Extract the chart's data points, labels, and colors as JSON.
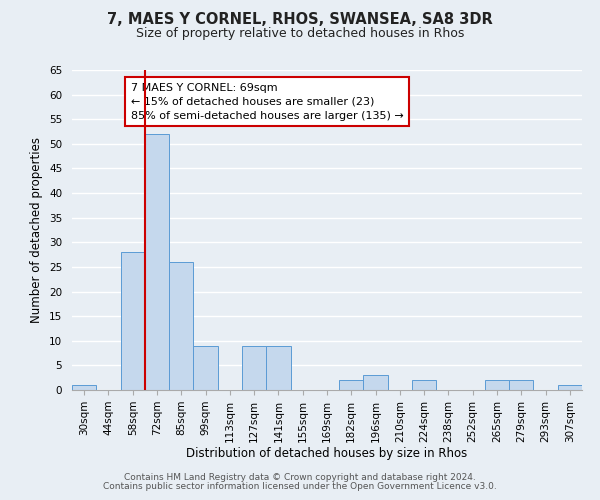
{
  "title": "7, MAES Y CORNEL, RHOS, SWANSEA, SA8 3DR",
  "subtitle": "Size of property relative to detached houses in Rhos",
  "xlabel": "Distribution of detached houses by size in Rhos",
  "ylabel": "Number of detached properties",
  "bin_labels": [
    "30sqm",
    "44sqm",
    "58sqm",
    "72sqm",
    "85sqm",
    "99sqm",
    "113sqm",
    "127sqm",
    "141sqm",
    "155sqm",
    "169sqm",
    "182sqm",
    "196sqm",
    "210sqm",
    "224sqm",
    "238sqm",
    "252sqm",
    "265sqm",
    "279sqm",
    "293sqm",
    "307sqm"
  ],
  "bar_heights": [
    1,
    0,
    28,
    52,
    26,
    9,
    0,
    9,
    9,
    0,
    0,
    2,
    3,
    0,
    2,
    0,
    0,
    2,
    2,
    0,
    1
  ],
  "bar_color": "#c5d8ed",
  "bar_edge_color": "#5b9bd5",
  "vline_color": "#cc0000",
  "vline_x_index": 3,
  "ylim": [
    0,
    65
  ],
  "yticks": [
    0,
    5,
    10,
    15,
    20,
    25,
    30,
    35,
    40,
    45,
    50,
    55,
    60,
    65
  ],
  "annotation_title": "7 MAES Y CORNEL: 69sqm",
  "annotation_line1": "← 15% of detached houses are smaller (23)",
  "annotation_line2": "85% of semi-detached houses are larger (135) →",
  "annotation_box_facecolor": "#ffffff",
  "annotation_box_edgecolor": "#cc0000",
  "footer1": "Contains HM Land Registry data © Crown copyright and database right 2024.",
  "footer2": "Contains public sector information licensed under the Open Government Licence v3.0.",
  "background_color": "#e8eef4",
  "grid_color": "#ffffff",
  "title_fontsize": 10.5,
  "subtitle_fontsize": 9,
  "axis_label_fontsize": 8.5,
  "tick_fontsize": 7.5,
  "annotation_fontsize": 8,
  "footer_fontsize": 6.5
}
